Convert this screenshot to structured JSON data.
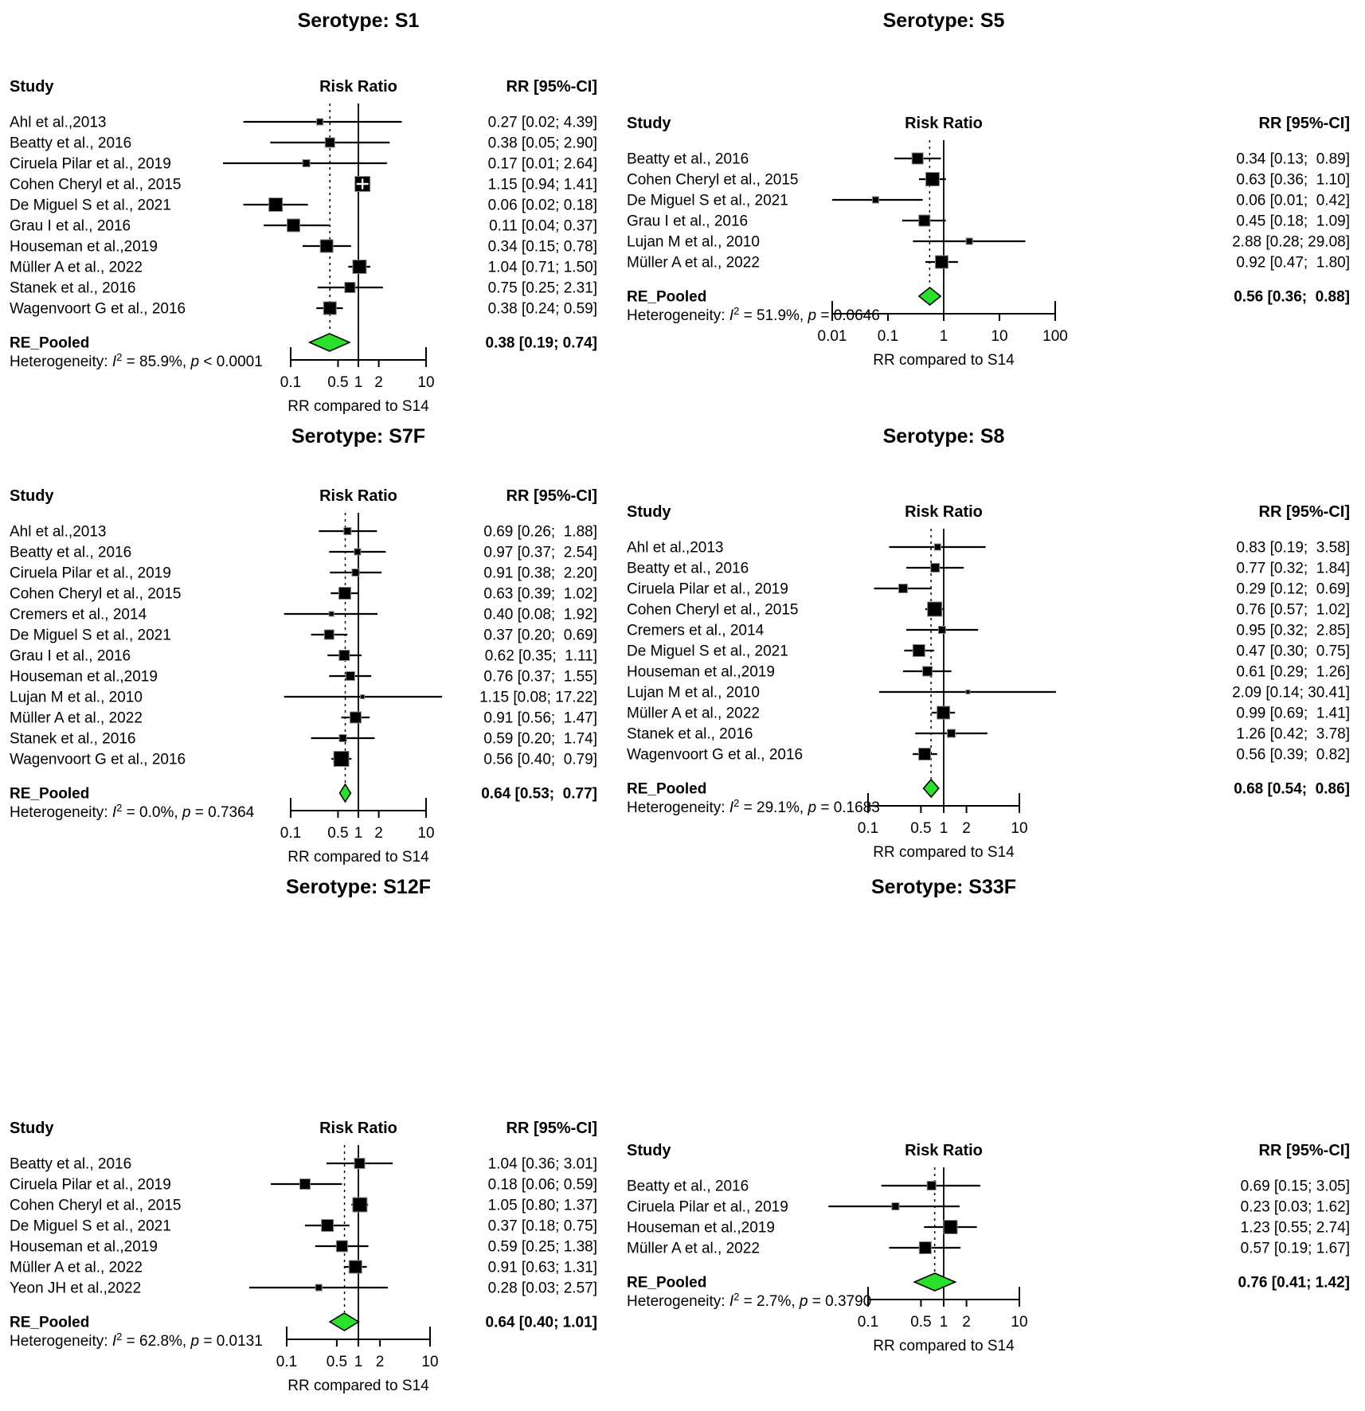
{
  "figure": {
    "comparator_note": "RR compared to S14",
    "colors": {
      "diamond_fill": "#2BE02B",
      "square_fill": "#000000",
      "square_edge": "#8a8a8a",
      "line": "#000000"
    }
  },
  "chart_data": [
    {
      "type": "forest",
      "id": "S1",
      "title": "Serotype: S1",
      "col_headers": {
        "study": "Study",
        "plot": "Risk Ratio",
        "ci": "RR [95%-CI]"
      },
      "xlabel": "RR compared to S14",
      "axis_ticks": [
        0.1,
        0.5,
        1,
        2,
        10
      ],
      "ref_value": 1,
      "studies": [
        {
          "label": "Ahl et al.,2013",
          "rr": 0.27,
          "lo": 0.02,
          "hi": 4.39,
          "ci_text": "0.27 [0.02; 4.39]",
          "sq": 8
        },
        {
          "label": "Beatty et al., 2016",
          "rr": 0.38,
          "lo": 0.05,
          "hi": 2.9,
          "ci_text": "0.38 [0.05; 2.90]",
          "sq": 12
        },
        {
          "label": "Ciruela Pilar et al., 2019",
          "rr": 0.17,
          "lo": 0.01,
          "hi": 2.64,
          "ci_text": "0.17 [0.01; 2.64]",
          "sq": 9
        },
        {
          "label": "Cohen Cheryl et al., 2015",
          "rr": 1.15,
          "lo": 0.94,
          "hi": 1.41,
          "ci_text": "1.15 [0.94; 1.41]",
          "sq": 19,
          "plus": true
        },
        {
          "label": "De Miguel S et al., 2021",
          "rr": 0.06,
          "lo": 0.02,
          "hi": 0.18,
          "ci_text": "0.06 [0.02; 0.18]",
          "sq": 17
        },
        {
          "label": "Grau I et al., 2016",
          "rr": 0.11,
          "lo": 0.04,
          "hi": 0.37,
          "ci_text": "0.11 [0.04; 0.37]",
          "sq": 16
        },
        {
          "label": "Houseman et al.,2019",
          "rr": 0.34,
          "lo": 0.15,
          "hi": 0.78,
          "ci_text": "0.34 [0.15; 0.78]",
          "sq": 16
        },
        {
          "label": "Müller A et al., 2022",
          "rr": 1.04,
          "lo": 0.71,
          "hi": 1.5,
          "ci_text": "1.04 [0.71; 1.50]",
          "sq": 17
        },
        {
          "label": "Stanek et al., 2016",
          "rr": 0.75,
          "lo": 0.25,
          "hi": 2.31,
          "ci_text": "0.75 [0.25; 2.31]",
          "sq": 13
        },
        {
          "label": "Wagenvoort G et al., 2016",
          "rr": 0.38,
          "lo": 0.24,
          "hi": 0.59,
          "ci_text": "0.38 [0.24; 0.59]",
          "sq": 16
        }
      ],
      "pooled": {
        "label": "RE_Pooled",
        "rr": 0.38,
        "lo": 0.19,
        "hi": 0.74,
        "ci_text": "0.38 [0.19; 0.74]"
      },
      "heterogeneity": {
        "label": "Heterogeneity:",
        "i2": "85.9%",
        "p": "< 0.0001"
      }
    },
    {
      "type": "forest",
      "id": "S5",
      "title": "Serotype: S5",
      "col_headers": {
        "study": "Study",
        "plot": "Risk Ratio",
        "ci": "RR [95%-CI]"
      },
      "xlabel": "RR compared to S14",
      "axis_ticks": [
        0.01,
        0.1,
        1,
        10,
        100
      ],
      "ref_value": 1,
      "studies": [
        {
          "label": "Beatty et al., 2016",
          "rr": 0.34,
          "lo": 0.13,
          "hi": 0.89,
          "ci_text": "0.34 [0.13;  0.89]",
          "sq": 14
        },
        {
          "label": "Cohen Cheryl et al., 2015",
          "rr": 0.63,
          "lo": 0.36,
          "hi": 1.1,
          "ci_text": "0.63 [0.36;  1.10]",
          "sq": 17
        },
        {
          "label": "De Miguel S et al., 2021",
          "rr": 0.06,
          "lo": 0.01,
          "hi": 0.42,
          "ci_text": "0.06 [0.01;  0.42]",
          "sq": 8
        },
        {
          "label": "Grau I et al., 2016",
          "rr": 0.45,
          "lo": 0.18,
          "hi": 1.09,
          "ci_text": "0.45 [0.18;  1.09]",
          "sq": 14
        },
        {
          "label": "Lujan M et al., 2010",
          "rr": 2.88,
          "lo": 0.28,
          "hi": 29.08,
          "ci_text": "2.88 [0.28; 29.08]",
          "sq": 8
        },
        {
          "label": "Müller A et al., 2022",
          "rr": 0.92,
          "lo": 0.47,
          "hi": 1.8,
          "ci_text": "0.92 [0.47;  1.80]",
          "sq": 16
        }
      ],
      "pooled": {
        "label": "RE_Pooled",
        "rr": 0.56,
        "lo": 0.36,
        "hi": 0.88,
        "ci_text": "0.56 [0.36;  0.88]"
      },
      "heterogeneity": {
        "label": "Heterogeneity:",
        "i2": "51.9%",
        "p": "= 0.0646"
      }
    },
    {
      "type": "forest",
      "id": "S7F",
      "title": "Serotype: S7F",
      "col_headers": {
        "study": "Study",
        "plot": "Risk Ratio",
        "ci": "RR [95%-CI]"
      },
      "xlabel": "RR compared to S14",
      "axis_ticks": [
        0.1,
        0.5,
        1,
        2,
        10
      ],
      "ref_value": 1,
      "studies": [
        {
          "label": "Ahl et al.,2013",
          "rr": 0.69,
          "lo": 0.26,
          "hi": 1.88,
          "ci_text": "0.69 [0.26;  1.88]",
          "sq": 9
        },
        {
          "label": "Beatty et al., 2016",
          "rr": 0.97,
          "lo": 0.37,
          "hi": 2.54,
          "ci_text": "0.97 [0.37;  2.54]",
          "sq": 8
        },
        {
          "label": "Ciruela Pilar et al., 2019",
          "rr": 0.91,
          "lo": 0.38,
          "hi": 2.2,
          "ci_text": "0.91 [0.38;  2.20]",
          "sq": 9
        },
        {
          "label": "Cohen Cheryl et al., 2015",
          "rr": 0.63,
          "lo": 0.39,
          "hi": 1.02,
          "ci_text": "0.63 [0.39;  1.02]",
          "sq": 15
        },
        {
          "label": "Cremers et al., 2014",
          "rr": 0.4,
          "lo": 0.08,
          "hi": 1.92,
          "ci_text": "0.40 [0.08;  1.92]",
          "sq": 6
        },
        {
          "label": "De Miguel S et al., 2021",
          "rr": 0.37,
          "lo": 0.2,
          "hi": 0.69,
          "ci_text": "0.37 [0.20;  0.69]",
          "sq": 12
        },
        {
          "label": "Grau I et al., 2016",
          "rr": 0.62,
          "lo": 0.35,
          "hi": 1.11,
          "ci_text": "0.62 [0.35;  1.11]",
          "sq": 13
        },
        {
          "label": "Houseman et al.,2019",
          "rr": 0.76,
          "lo": 0.37,
          "hi": 1.55,
          "ci_text": "0.76 [0.37;  1.55]",
          "sq": 11
        },
        {
          "label": "Lujan M et al., 2010",
          "rr": 1.15,
          "lo": 0.08,
          "hi": 17.22,
          "ci_text": "1.15 [0.08; 17.22]",
          "sq": 5
        },
        {
          "label": "Müller A et al., 2022",
          "rr": 0.91,
          "lo": 0.56,
          "hi": 1.47,
          "ci_text": "0.91 [0.56;  1.47]",
          "sq": 14
        },
        {
          "label": "Stanek et al., 2016",
          "rr": 0.59,
          "lo": 0.2,
          "hi": 1.74,
          "ci_text": "0.59 [0.20;  1.74]",
          "sq": 9
        },
        {
          "label": "Wagenvoort G et al., 2016",
          "rr": 0.56,
          "lo": 0.4,
          "hi": 0.79,
          "ci_text": "0.56 [0.40;  0.79]",
          "sq": 19
        }
      ],
      "pooled": {
        "label": "RE_Pooled",
        "rr": 0.64,
        "lo": 0.53,
        "hi": 0.77,
        "ci_text": "0.64 [0.53;  0.77]"
      },
      "heterogeneity": {
        "label": "Heterogeneity:",
        "i2": "0.0%",
        "p": "= 0.7364"
      }
    },
    {
      "type": "forest",
      "id": "S8",
      "title": "Serotype: S8",
      "col_headers": {
        "study": "Study",
        "plot": "Risk Ratio",
        "ci": "RR [95%-CI]"
      },
      "xlabel": "RR compared to S14",
      "axis_ticks": [
        0.1,
        0.5,
        1,
        2,
        10
      ],
      "ref_value": 1,
      "studies": [
        {
          "label": "Ahl et al.,2013",
          "rr": 0.83,
          "lo": 0.19,
          "hi": 3.58,
          "ci_text": "0.83 [0.19;  3.58]",
          "sq": 8
        },
        {
          "label": "Beatty et al., 2016",
          "rr": 0.77,
          "lo": 0.32,
          "hi": 1.84,
          "ci_text": "0.77 [0.32;  1.84]",
          "sq": 11
        },
        {
          "label": "Ciruela Pilar et al., 2019",
          "rr": 0.29,
          "lo": 0.12,
          "hi": 0.69,
          "ci_text": "0.29 [0.12;  0.69]",
          "sq": 11
        },
        {
          "label": "Cohen Cheryl et al., 2015",
          "rr": 0.76,
          "lo": 0.57,
          "hi": 1.02,
          "ci_text": "0.76 [0.57;  1.02]",
          "sq": 18
        },
        {
          "label": "Cremers et al., 2014",
          "rr": 0.95,
          "lo": 0.32,
          "hi": 2.85,
          "ci_text": "0.95 [0.32;  2.85]",
          "sq": 9
        },
        {
          "label": "De Miguel S et al., 2021",
          "rr": 0.47,
          "lo": 0.3,
          "hi": 0.75,
          "ci_text": "0.47 [0.30;  0.75]",
          "sq": 15
        },
        {
          "label": "Houseman et al.,2019",
          "rr": 0.61,
          "lo": 0.29,
          "hi": 1.26,
          "ci_text": "0.61 [0.29;  1.26]",
          "sq": 12
        },
        {
          "label": "Lujan M et al., 2010",
          "rr": 2.09,
          "lo": 0.14,
          "hi": 30.41,
          "ci_text": "2.09 [0.14; 30.41]",
          "sq": 5
        },
        {
          "label": "Müller A et al., 2022",
          "rr": 0.99,
          "lo": 0.69,
          "hi": 1.41,
          "ci_text": "0.99 [0.69;  1.41]",
          "sq": 16
        },
        {
          "label": "Stanek et al., 2016",
          "rr": 1.26,
          "lo": 0.42,
          "hi": 3.78,
          "ci_text": "1.26 [0.42;  3.78]",
          "sq": 10
        },
        {
          "label": "Wagenvoort G et al., 2016",
          "rr": 0.56,
          "lo": 0.39,
          "hi": 0.82,
          "ci_text": "0.56 [0.39;  0.82]",
          "sq": 15
        }
      ],
      "pooled": {
        "label": "RE_Pooled",
        "rr": 0.68,
        "lo": 0.54,
        "hi": 0.86,
        "ci_text": "0.68 [0.54;  0.86]"
      },
      "heterogeneity": {
        "label": "Heterogeneity:",
        "i2": "29.1%",
        "p": "= 0.1683"
      }
    },
    {
      "type": "forest",
      "id": "S12F",
      "title": "Serotype: S12F",
      "col_headers": {
        "study": "Study",
        "plot": "Risk Ratio",
        "ci": "RR [95%-CI]"
      },
      "xlabel": "RR compared to S14",
      "axis_ticks": [
        0.1,
        0.5,
        1,
        2,
        10
      ],
      "ref_value": 1,
      "studies": [
        {
          "label": "Beatty et al., 2016",
          "rr": 1.04,
          "lo": 0.36,
          "hi": 3.01,
          "ci_text": "1.04 [0.36; 3.01]",
          "sq": 13
        },
        {
          "label": "Ciruela Pilar et al., 2019",
          "rr": 0.18,
          "lo": 0.06,
          "hi": 0.59,
          "ci_text": "0.18 [0.06; 0.59]",
          "sq": 13
        },
        {
          "label": "Cohen Cheryl et al., 2015",
          "rr": 1.05,
          "lo": 0.8,
          "hi": 1.37,
          "ci_text": "1.05 [0.80; 1.37]",
          "sq": 18
        },
        {
          "label": "De Miguel S et al., 2021",
          "rr": 0.37,
          "lo": 0.18,
          "hi": 0.75,
          "ci_text": "0.37 [0.18; 0.75]",
          "sq": 15
        },
        {
          "label": "Houseman et al.,2019",
          "rr": 0.59,
          "lo": 0.25,
          "hi": 1.38,
          "ci_text": "0.59 [0.25; 1.38]",
          "sq": 14
        },
        {
          "label": "Müller A et al., 2022",
          "rr": 0.91,
          "lo": 0.63,
          "hi": 1.31,
          "ci_text": "0.91 [0.63; 1.31]",
          "sq": 16
        },
        {
          "label": "Yeon JH et al.,2022",
          "rr": 0.28,
          "lo": 0.03,
          "hi": 2.57,
          "ci_text": "0.28 [0.03; 2.57]",
          "sq": 8
        }
      ],
      "pooled": {
        "label": "RE_Pooled",
        "rr": 0.64,
        "lo": 0.4,
        "hi": 1.01,
        "ci_text": "0.64 [0.40; 1.01]"
      },
      "heterogeneity": {
        "label": "Heterogeneity:",
        "i2": "62.8%",
        "p": "= 0.0131"
      }
    },
    {
      "type": "forest",
      "id": "S33F",
      "title": "Serotype: S33F",
      "col_headers": {
        "study": "Study",
        "plot": "Risk Ratio",
        "ci": "RR [95%-CI]"
      },
      "xlabel": "RR compared to S14",
      "axis_ticks": [
        0.1,
        0.5,
        1,
        2,
        10
      ],
      "ref_value": 1,
      "studies": [
        {
          "label": "Beatty et al., 2016",
          "rr": 0.69,
          "lo": 0.15,
          "hi": 3.05,
          "ci_text": "0.69 [0.15; 3.05]",
          "sq": 11
        },
        {
          "label": "Ciruela Pilar et al., 2019",
          "rr": 0.23,
          "lo": 0.03,
          "hi": 1.62,
          "ci_text": "0.23 [0.03; 1.62]",
          "sq": 9
        },
        {
          "label": "Houseman et al.,2019",
          "rr": 1.23,
          "lo": 0.55,
          "hi": 2.74,
          "ci_text": "1.23 [0.55; 2.74]",
          "sq": 17
        },
        {
          "label": "Müller A et al., 2022",
          "rr": 0.57,
          "lo": 0.19,
          "hi": 1.67,
          "ci_text": "0.57 [0.19; 1.67]",
          "sq": 15
        }
      ],
      "pooled": {
        "label": "RE_Pooled",
        "rr": 0.76,
        "lo": 0.41,
        "hi": 1.42,
        "ci_text": "0.76 [0.41; 1.42]"
      },
      "heterogeneity": {
        "label": "Heterogeneity:",
        "i2": "2.7%",
        "p": "= 0.3790"
      }
    }
  ]
}
